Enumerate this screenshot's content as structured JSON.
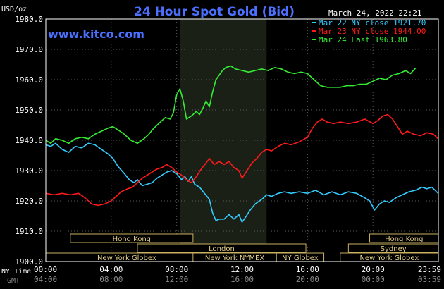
{
  "chart_data": {
    "type": "line",
    "title": "24 Hour Spot Gold (Bid)",
    "website": "www.kitco.com",
    "timestamp": "March 24, 2022 22:21",
    "ylabel": "USD/oz",
    "ylim": [
      1900,
      1980
    ],
    "yticks": [
      "1980.0",
      "1970.0",
      "1960.0",
      "1950.0",
      "1940.0",
      "1930.0",
      "1920.0",
      "1910.0",
      "1900.0"
    ],
    "ny_time_label": "NY Time",
    "gmt_label": "GMT",
    "x_ticks_ny": [
      "00:00",
      "04:00",
      "08:00",
      "12:00",
      "16:00",
      "20:00",
      "23:59"
    ],
    "x_ticks_gmt": [
      "04:00",
      "08:00",
      "12:00",
      "16:00",
      "20:00",
      "00:00",
      "03:59"
    ],
    "x_tick_hours": [
      0,
      4,
      8,
      12,
      16,
      20,
      24
    ],
    "highlight_hours": [
      8.2,
      13.5
    ],
    "grid": true,
    "legend_position": "top-right",
    "colors": {
      "background": "#000000",
      "highlight": "#1b2016",
      "grid": "#5a5a5a",
      "border": "#ffffff",
      "session_fill": "#000000",
      "session_border": "#c8b060",
      "session_text": "#e6d28a",
      "title": "#4b6fff"
    },
    "series": [
      {
        "name": "Mar 22 NY close 1921.70",
        "color": "#33ccff",
        "points": [
          [
            0,
            1938.5
          ],
          [
            0.3,
            1938
          ],
          [
            0.6,
            1939
          ],
          [
            1,
            1937
          ],
          [
            1.4,
            1936
          ],
          [
            1.8,
            1938
          ],
          [
            2.2,
            1937.5
          ],
          [
            2.6,
            1939
          ],
          [
            3.0,
            1938.5
          ],
          [
            3.4,
            1937
          ],
          [
            3.8,
            1935.5
          ],
          [
            4.1,
            1934
          ],
          [
            4.4,
            1931.5
          ],
          [
            4.8,
            1929
          ],
          [
            5.1,
            1927
          ],
          [
            5.4,
            1926
          ],
          [
            5.6,
            1927
          ],
          [
            5.9,
            1925
          ],
          [
            6.2,
            1925.5
          ],
          [
            6.5,
            1926
          ],
          [
            6.8,
            1927.5
          ],
          [
            7.1,
            1928.5
          ],
          [
            7.4,
            1929.5
          ],
          [
            7.7,
            1930
          ],
          [
            8.0,
            1929
          ],
          [
            8.3,
            1927
          ],
          [
            8.5,
            1928
          ],
          [
            8.7,
            1926.5
          ],
          [
            8.9,
            1928
          ],
          [
            9.1,
            1925.5
          ],
          [
            9.4,
            1924.5
          ],
          [
            9.7,
            1922.5
          ],
          [
            10.0,
            1920.5
          ],
          [
            10.2,
            1916
          ],
          [
            10.4,
            1913.5
          ],
          [
            10.6,
            1914
          ],
          [
            10.9,
            1914
          ],
          [
            11.2,
            1915.5
          ],
          [
            11.5,
            1914
          ],
          [
            11.8,
            1915.5
          ],
          [
            12.0,
            1913
          ],
          [
            12.2,
            1914.5
          ],
          [
            12.5,
            1917
          ],
          [
            12.8,
            1919
          ],
          [
            13.2,
            1920.5
          ],
          [
            13.5,
            1922
          ],
          [
            13.8,
            1921.5
          ],
          [
            14.2,
            1922.5
          ],
          [
            14.6,
            1923
          ],
          [
            15.0,
            1922.5
          ],
          [
            15.5,
            1923
          ],
          [
            16.0,
            1922.5
          ],
          [
            16.5,
            1923.5
          ],
          [
            17.0,
            1922
          ],
          [
            17.5,
            1923
          ],
          [
            18.0,
            1922
          ],
          [
            18.5,
            1923
          ],
          [
            19.0,
            1922.5
          ],
          [
            19.5,
            1921
          ],
          [
            19.8,
            1920
          ],
          [
            20.1,
            1917
          ],
          [
            20.4,
            1919
          ],
          [
            20.7,
            1920
          ],
          [
            21.0,
            1919.5
          ],
          [
            21.4,
            1921
          ],
          [
            21.8,
            1922
          ],
          [
            22.2,
            1923
          ],
          [
            22.6,
            1923.5
          ],
          [
            23.0,
            1924.5
          ],
          [
            23.3,
            1924
          ],
          [
            23.6,
            1924.5
          ],
          [
            23.99,
            1922.5
          ]
        ]
      },
      {
        "name": "Mar 23 NY close 1944.00",
        "color": "#ff1a1a",
        "points": [
          [
            0,
            1922.5
          ],
          [
            0.5,
            1922
          ],
          [
            1.0,
            1922.5
          ],
          [
            1.5,
            1922
          ],
          [
            2.0,
            1922.5
          ],
          [
            2.4,
            1921
          ],
          [
            2.8,
            1919
          ],
          [
            3.2,
            1918.5
          ],
          [
            3.6,
            1919
          ],
          [
            4.0,
            1920
          ],
          [
            4.3,
            1921.5
          ],
          [
            4.6,
            1923
          ],
          [
            5.0,
            1924
          ],
          [
            5.3,
            1924.5
          ],
          [
            5.6,
            1926
          ],
          [
            5.9,
            1927.5
          ],
          [
            6.2,
            1928.5
          ],
          [
            6.5,
            1929.5
          ],
          [
            6.8,
            1930.5
          ],
          [
            7.1,
            1931
          ],
          [
            7.4,
            1932
          ],
          [
            7.7,
            1931
          ],
          [
            8.0,
            1929.5
          ],
          [
            8.3,
            1928.5
          ],
          [
            8.6,
            1927
          ],
          [
            8.9,
            1926
          ],
          [
            9.2,
            1928
          ],
          [
            9.5,
            1930.5
          ],
          [
            9.8,
            1932.5
          ],
          [
            10.0,
            1934
          ],
          [
            10.3,
            1932
          ],
          [
            10.6,
            1933
          ],
          [
            10.9,
            1932
          ],
          [
            11.2,
            1933
          ],
          [
            11.5,
            1931
          ],
          [
            11.8,
            1930
          ],
          [
            12.0,
            1927.5
          ],
          [
            12.3,
            1930
          ],
          [
            12.6,
            1932.5
          ],
          [
            12.9,
            1934
          ],
          [
            13.2,
            1936
          ],
          [
            13.5,
            1937
          ],
          [
            13.8,
            1936.5
          ],
          [
            14.2,
            1938
          ],
          [
            14.6,
            1939
          ],
          [
            15.0,
            1938.5
          ],
          [
            15.5,
            1939.5
          ],
          [
            16.0,
            1941
          ],
          [
            16.3,
            1944
          ],
          [
            16.6,
            1946
          ],
          [
            16.9,
            1947
          ],
          [
            17.2,
            1946
          ],
          [
            17.6,
            1945.5
          ],
          [
            18.0,
            1946
          ],
          [
            18.5,
            1945.5
          ],
          [
            19.0,
            1946
          ],
          [
            19.5,
            1947
          ],
          [
            20.0,
            1945.5
          ],
          [
            20.3,
            1946.5
          ],
          [
            20.6,
            1948
          ],
          [
            20.9,
            1948.5
          ],
          [
            21.2,
            1947
          ],
          [
            21.5,
            1944.5
          ],
          [
            21.8,
            1942
          ],
          [
            22.1,
            1943
          ],
          [
            22.5,
            1942
          ],
          [
            22.9,
            1941.5
          ],
          [
            23.3,
            1942.5
          ],
          [
            23.7,
            1942
          ],
          [
            23.99,
            1940.5
          ]
        ]
      },
      {
        "name": "Mar 24 Last 1963.80",
        "color": "#33ee33",
        "points": [
          [
            0,
            1940
          ],
          [
            0.3,
            1939
          ],
          [
            0.6,
            1940.5
          ],
          [
            1.0,
            1940
          ],
          [
            1.4,
            1939
          ],
          [
            1.8,
            1940.5
          ],
          [
            2.2,
            1941
          ],
          [
            2.6,
            1940.5
          ],
          [
            3.0,
            1942
          ],
          [
            3.4,
            1943
          ],
          [
            3.8,
            1944
          ],
          [
            4.1,
            1944.5
          ],
          [
            4.4,
            1943.5
          ],
          [
            4.8,
            1942
          ],
          [
            5.2,
            1940
          ],
          [
            5.6,
            1939
          ],
          [
            6.0,
            1940.5
          ],
          [
            6.3,
            1942
          ],
          [
            6.6,
            1944
          ],
          [
            7.0,
            1946
          ],
          [
            7.3,
            1947.5
          ],
          [
            7.6,
            1947
          ],
          [
            7.8,
            1949
          ],
          [
            8.0,
            1955
          ],
          [
            8.2,
            1957
          ],
          [
            8.4,
            1953
          ],
          [
            8.6,
            1947
          ],
          [
            8.9,
            1948
          ],
          [
            9.2,
            1949.5
          ],
          [
            9.4,
            1948.5
          ],
          [
            9.6,
            1950.5
          ],
          [
            9.8,
            1953
          ],
          [
            10.0,
            1951
          ],
          [
            10.2,
            1956
          ],
          [
            10.4,
            1960
          ],
          [
            10.6,
            1961.5
          ],
          [
            10.8,
            1963
          ],
          [
            11.0,
            1964
          ],
          [
            11.3,
            1964.5
          ],
          [
            11.6,
            1963.5
          ],
          [
            12.0,
            1963
          ],
          [
            12.4,
            1962.5
          ],
          [
            12.8,
            1963
          ],
          [
            13.2,
            1963.5
          ],
          [
            13.6,
            1963
          ],
          [
            14.0,
            1964
          ],
          [
            14.4,
            1963.5
          ],
          [
            14.8,
            1962.5
          ],
          [
            15.2,
            1962
          ],
          [
            15.6,
            1962.5
          ],
          [
            16.0,
            1962
          ],
          [
            16.4,
            1960
          ],
          [
            16.8,
            1958
          ],
          [
            17.2,
            1957.5
          ],
          [
            17.6,
            1957.5
          ],
          [
            18.0,
            1957.5
          ],
          [
            18.4,
            1958
          ],
          [
            18.8,
            1958
          ],
          [
            19.2,
            1958.5
          ],
          [
            19.6,
            1958.5
          ],
          [
            20.0,
            1959.5
          ],
          [
            20.4,
            1960.5
          ],
          [
            20.8,
            1960
          ],
          [
            21.2,
            1961.5
          ],
          [
            21.6,
            1962
          ],
          [
            22.0,
            1963
          ],
          [
            22.3,
            1962
          ],
          [
            22.6,
            1963.8
          ]
        ]
      }
    ],
    "sessions": [
      {
        "label": "Hong Kong",
        "start": 1.5,
        "end": 9.0,
        "row": 0
      },
      {
        "label": "London",
        "start": 5.6,
        "end": 15.9,
        "row": 1
      },
      {
        "label": "New York Globex",
        "start": 0.0,
        "end": 9.9,
        "row": 2
      },
      {
        "label": "New York NYMEX",
        "start": 9.0,
        "end": 14.1,
        "row": 2
      },
      {
        "label": "NY Globex",
        "start": 14.1,
        "end": 17.0,
        "row": 2
      },
      {
        "label": "Hong Kong",
        "start": 19.8,
        "end": 24.0,
        "row": 0
      },
      {
        "label": "Sydney",
        "start": 18.5,
        "end": 24.0,
        "row": 1
      },
      {
        "label": "New York Globex",
        "start": 18.0,
        "end": 24.0,
        "row": 2
      }
    ]
  }
}
